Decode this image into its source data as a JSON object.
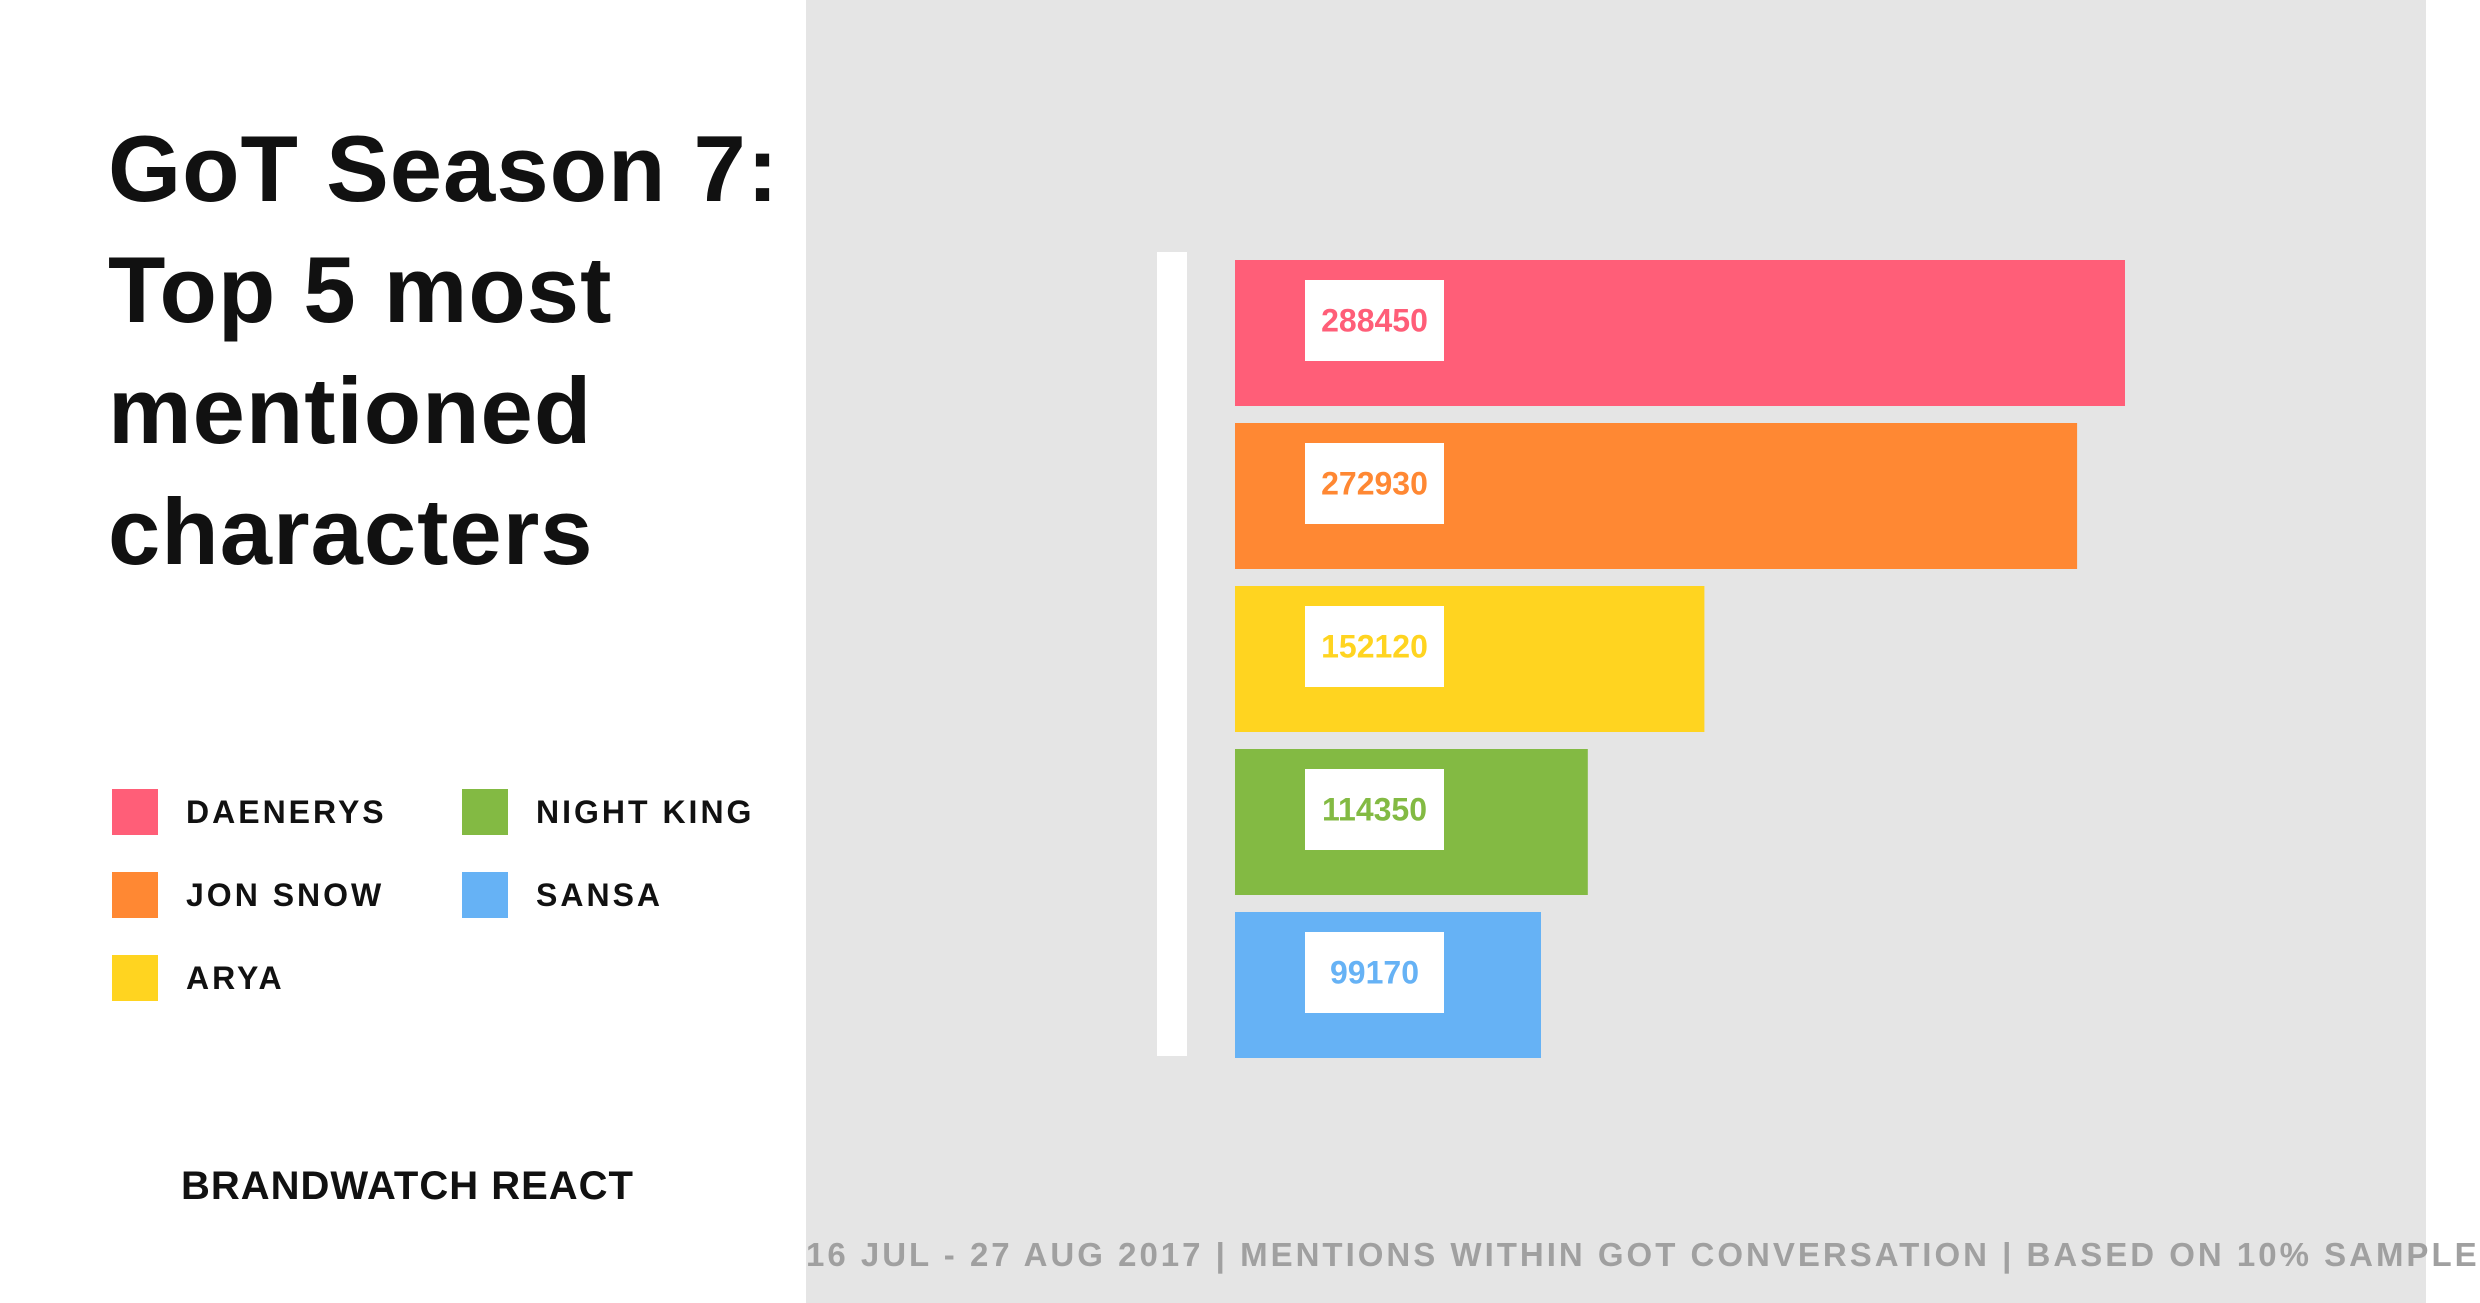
{
  "title_lines": [
    "GoT Season 7:",
    "Top 5 most",
    "mentioned",
    "characters"
  ],
  "brand": "BRANDWATCH REACT",
  "footnote": "16 JUL - 27 AUG 2017 | MENTIONS WITHIN GOT CONVERSATION | BASED ON 10% SAMPLE",
  "legend": [
    {
      "label": "DAENERYS",
      "color": "#ff5e78"
    },
    {
      "label": "JON SNOW",
      "color": "#ff8833"
    },
    {
      "label": "ARYA",
      "color": "#ffd420"
    },
    {
      "label": "NIGHT KING",
      "color": "#83ba43"
    },
    {
      "label": "SANSA",
      "color": "#66b2f5"
    }
  ],
  "chart_data": {
    "type": "bar",
    "orientation": "horizontal",
    "categories": [
      "DAENERYS",
      "JON SNOW",
      "ARYA",
      "NIGHT KING",
      "SANSA"
    ],
    "values": [
      288450,
      272930,
      152120,
      114350,
      99170
    ],
    "colors": [
      "#ff5e78",
      "#ff8833",
      "#ffd420",
      "#83ba43",
      "#66b2f5"
    ],
    "title": "GoT Season 7: Top 5 most mentioned characters",
    "xlim": [
      0,
      288450
    ],
    "grid": false,
    "legend_position": "left"
  }
}
